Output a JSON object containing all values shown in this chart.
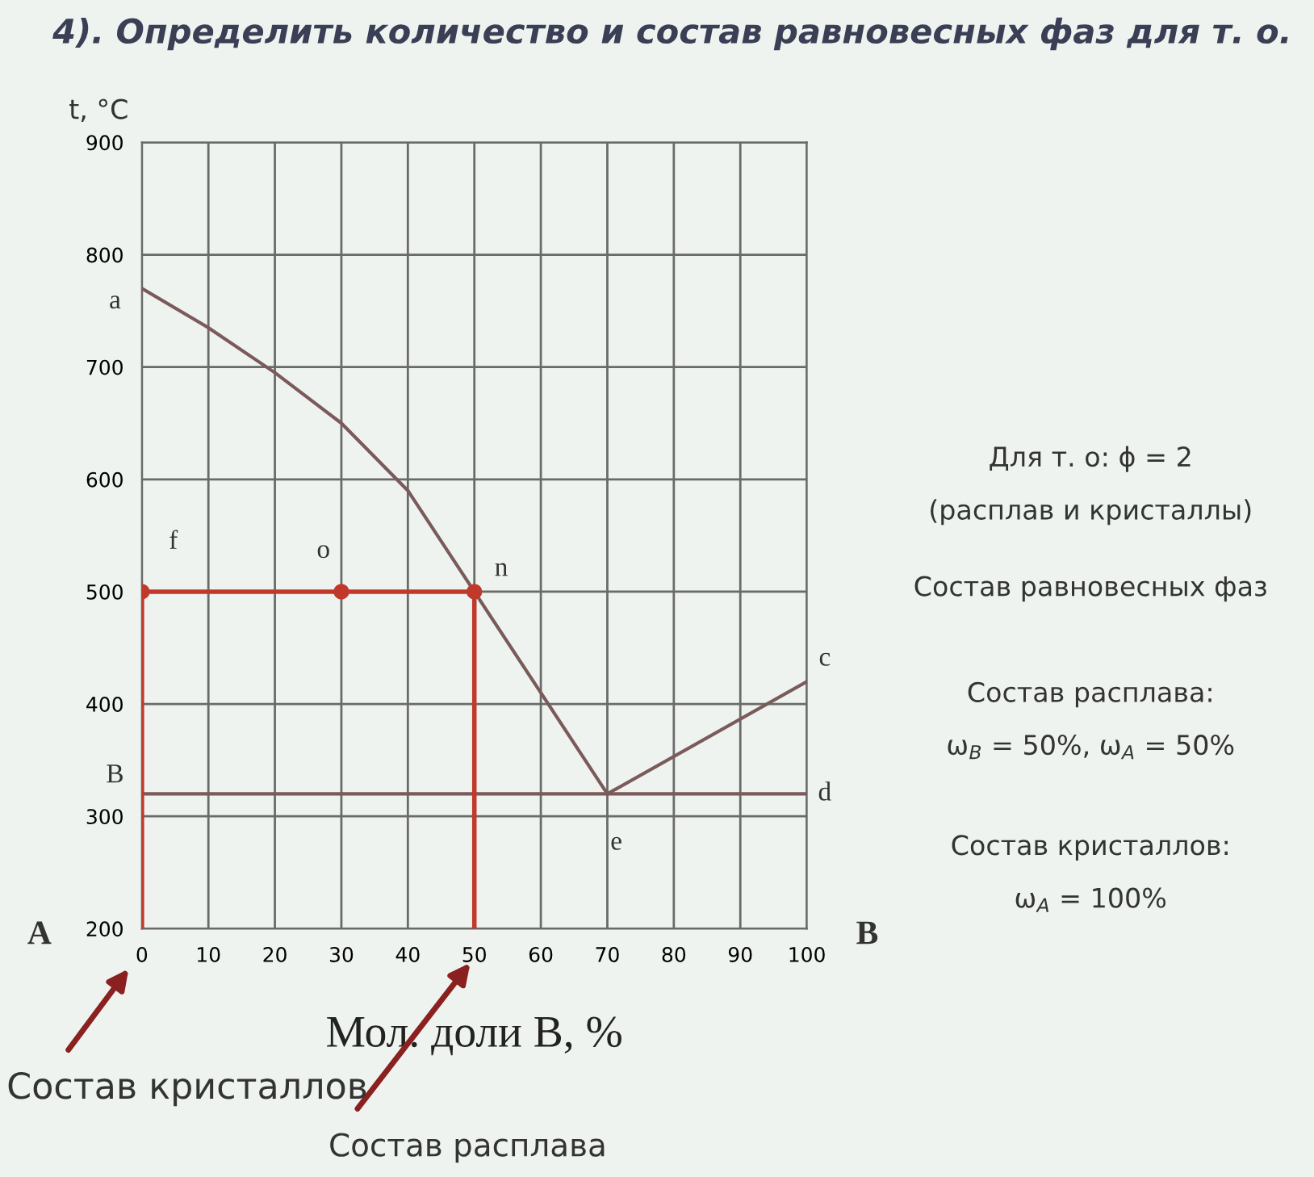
{
  "chart_data": {
    "type": "line",
    "title": "4). Определить количество и состав равновесных фаз для т. о.",
    "xlabel": "Мол. доли В, %",
    "ylabel": "t, °C",
    "xlim": [
      0,
      100
    ],
    "xticks": [
      0,
      10,
      20,
      30,
      40,
      50,
      60,
      70,
      80,
      90,
      100
    ],
    "ylim": [
      200,
      900
    ],
    "yticks": [
      200,
      300,
      400,
      500,
      600,
      700,
      800,
      900
    ],
    "grid": true,
    "series": [
      {
        "color": "#7a5a5a",
        "x": [
          0,
          10,
          20,
          30,
          40,
          50,
          60,
          70
        ],
        "values": [
          770,
          735,
          695,
          650,
          590,
          500,
          410,
          320
        ],
        "marker": "none"
      },
      {
        "color": "#7a5a5a",
        "x": [
          70,
          100
        ],
        "values": [
          320,
          420
        ],
        "marker": "none"
      },
      {
        "color": "#7a5a5a",
        "x": [
          0,
          100
        ],
        "values": [
          320,
          320
        ],
        "marker": "none"
      },
      {
        "color": "#c0392b",
        "x": [
          0,
          30,
          50
        ],
        "values": [
          500,
          500,
          500
        ],
        "marker": "circle"
      },
      {
        "color": "#c0392b",
        "x": [
          0,
          0
        ],
        "values": [
          200,
          500
        ],
        "marker": "none"
      },
      {
        "color": "#c0392b",
        "x": [
          50,
          50
        ],
        "values": [
          200,
          500
        ],
        "marker": "none"
      }
    ],
    "annotations": [
      {
        "text": "a",
        "x": 0,
        "y": 770
      },
      {
        "text": "f",
        "x": 0,
        "y": 500
      },
      {
        "text": "o",
        "x": 30,
        "y": 500
      },
      {
        "text": "n",
        "x": 50,
        "y": 500
      },
      {
        "text": "e",
        "x": 70,
        "y": 320
      },
      {
        "text": "c",
        "x": 100,
        "y": 420
      },
      {
        "text": "d",
        "x": 100,
        "y": 320
      },
      {
        "text": "B",
        "x": 0,
        "y": 320
      },
      "A",
      "B",
      "Состав кристаллов",
      "Состав расплава",
      "Для т. о: ϕ = 2",
      "(расплав и кристаллы)",
      "Состав равновесных фаз",
      "Состав расплава:",
      "ω$_{B}$ = 50%, ω$_{A}$ = 50%",
      "Состав кристаллов:",
      "ω$_{A}$ = 100%"
    ]
  }
}
